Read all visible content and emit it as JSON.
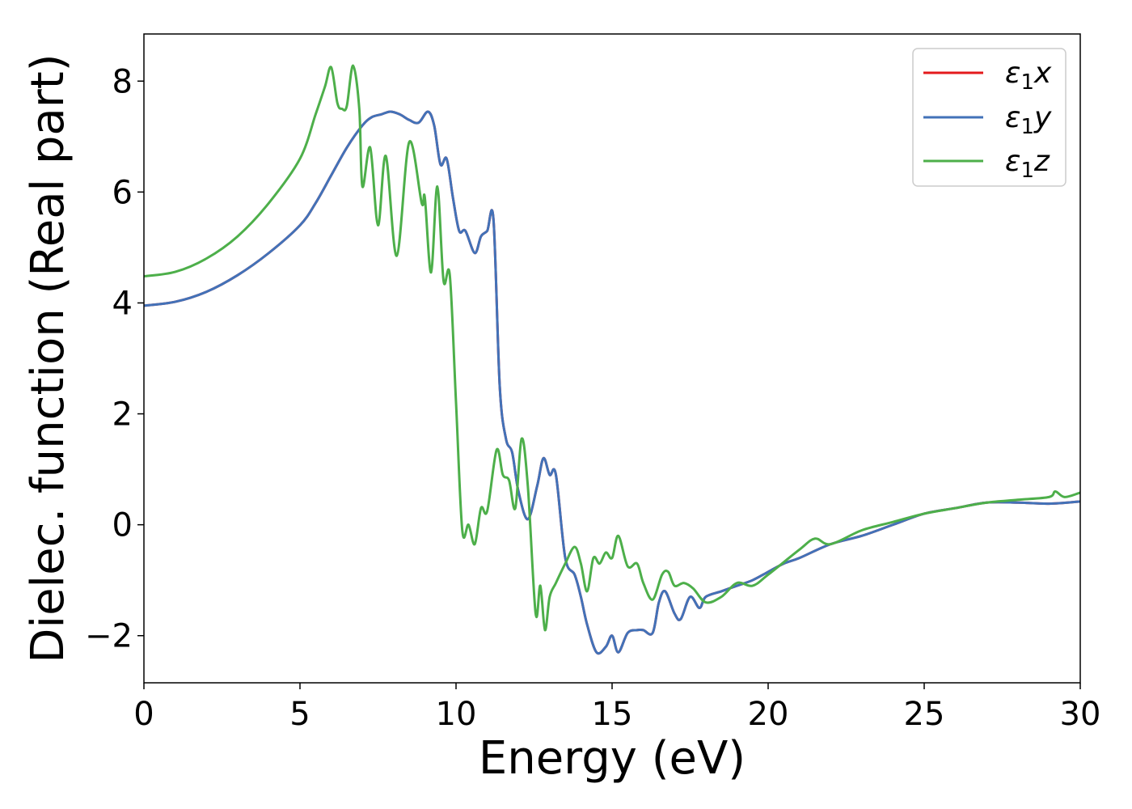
{
  "chart_data": {
    "type": "line",
    "xlabel": "Energy (eV)",
    "ylabel": "Dielec. function (Real part)",
    "xlim": [
      0,
      30
    ],
    "ylim": [
      -2.85,
      8.85
    ],
    "xticks": [
      0,
      5,
      10,
      15,
      20,
      25,
      30
    ],
    "xtick_labels": [
      "0",
      "5",
      "10",
      "15",
      "20",
      "25",
      "30"
    ],
    "yticks": [
      -2,
      0,
      2,
      4,
      6,
      8
    ],
    "ytick_labels": [
      "−2",
      "0",
      "2",
      "4",
      "6",
      "8"
    ],
    "grid": false,
    "legend_position": "top-right",
    "series": [
      {
        "name": "ε1x",
        "color": "#e41a1c",
        "x": [
          0,
          1,
          2,
          3,
          4,
          5,
          5.5,
          6,
          6.5,
          7,
          7.3,
          7.6,
          7.9,
          8.2,
          8.5,
          8.8,
          9.1,
          9.3,
          9.5,
          9.7,
          9.9,
          10.1,
          10.3,
          10.6,
          10.8,
          11.0,
          11.2,
          11.4,
          11.6,
          11.8,
          12.0,
          12.3,
          12.6,
          12.8,
          13.0,
          13.2,
          13.5,
          13.8,
          14.0,
          14.2,
          14.5,
          14.8,
          15.0,
          15.2,
          15.5,
          15.8,
          16.0,
          16.3,
          16.5,
          16.7,
          17.0,
          17.2,
          17.5,
          17.8,
          18.0,
          18.5,
          19.0,
          19.5,
          20,
          20.5,
          21,
          22,
          23,
          24,
          25,
          26,
          27,
          28,
          29,
          30
        ],
        "y": [
          3.95,
          4.02,
          4.2,
          4.5,
          4.9,
          5.4,
          5.8,
          6.3,
          6.8,
          7.2,
          7.35,
          7.4,
          7.45,
          7.4,
          7.3,
          7.25,
          7.45,
          7.2,
          6.5,
          6.6,
          5.9,
          5.3,
          5.3,
          4.9,
          5.2,
          5.3,
          5.5,
          2.5,
          1.55,
          1.3,
          0.6,
          0.1,
          0.7,
          1.2,
          0.9,
          0.9,
          -0.6,
          -0.9,
          -1.3,
          -1.8,
          -2.3,
          -2.2,
          -2.0,
          -2.3,
          -1.95,
          -1.9,
          -1.9,
          -1.95,
          -1.4,
          -1.2,
          -1.6,
          -1.7,
          -1.3,
          -1.5,
          -1.3,
          -1.2,
          -1.1,
          -1.0,
          -0.85,
          -0.7,
          -0.6,
          -0.35,
          -0.2,
          0.0,
          0.2,
          0.3,
          0.4,
          0.4,
          0.38,
          0.42
        ]
      },
      {
        "name": "ε1y",
        "color": "#4272b8",
        "x": [
          0,
          1,
          2,
          3,
          4,
          5,
          5.5,
          6,
          6.5,
          7,
          7.3,
          7.6,
          7.9,
          8.2,
          8.5,
          8.8,
          9.1,
          9.3,
          9.5,
          9.7,
          9.9,
          10.1,
          10.3,
          10.6,
          10.8,
          11.0,
          11.2,
          11.4,
          11.6,
          11.8,
          12.0,
          12.3,
          12.6,
          12.8,
          13.0,
          13.2,
          13.5,
          13.8,
          14.0,
          14.2,
          14.5,
          14.8,
          15.0,
          15.2,
          15.5,
          15.8,
          16.0,
          16.3,
          16.5,
          16.7,
          17.0,
          17.2,
          17.5,
          17.8,
          18.0,
          18.5,
          19.0,
          19.5,
          20,
          20.5,
          21,
          22,
          23,
          24,
          25,
          26,
          27,
          28,
          29,
          30
        ],
        "y": [
          3.95,
          4.02,
          4.2,
          4.5,
          4.9,
          5.4,
          5.8,
          6.3,
          6.8,
          7.2,
          7.35,
          7.4,
          7.45,
          7.4,
          7.3,
          7.25,
          7.45,
          7.2,
          6.5,
          6.6,
          5.9,
          5.3,
          5.3,
          4.9,
          5.2,
          5.3,
          5.5,
          2.5,
          1.55,
          1.3,
          0.6,
          0.1,
          0.7,
          1.2,
          0.9,
          0.9,
          -0.6,
          -0.9,
          -1.3,
          -1.8,
          -2.3,
          -2.2,
          -2.0,
          -2.3,
          -1.95,
          -1.9,
          -1.9,
          -1.95,
          -1.4,
          -1.2,
          -1.6,
          -1.7,
          -1.3,
          -1.5,
          -1.3,
          -1.2,
          -1.1,
          -1.0,
          -0.85,
          -0.7,
          -0.6,
          -0.35,
          -0.2,
          0.0,
          0.2,
          0.3,
          0.4,
          0.4,
          0.38,
          0.42
        ]
      },
      {
        "name": "ε1z",
        "color": "#4daf4a",
        "x": [
          0,
          1,
          2,
          3,
          4,
          5,
          5.5,
          5.8,
          6.0,
          6.2,
          6.35,
          6.5,
          6.7,
          6.9,
          7.0,
          7.25,
          7.5,
          7.75,
          8.1,
          8.5,
          8.9,
          9.0,
          9.2,
          9.4,
          9.6,
          9.8,
          10.0,
          10.2,
          10.4,
          10.6,
          10.8,
          11.0,
          11.3,
          11.5,
          11.7,
          11.9,
          12.1,
          12.3,
          12.55,
          12.7,
          12.85,
          13.0,
          13.2,
          13.5,
          13.8,
          14.0,
          14.2,
          14.4,
          14.6,
          14.8,
          15.0,
          15.2,
          15.5,
          15.8,
          16.0,
          16.3,
          16.6,
          16.8,
          17.0,
          17.3,
          17.6,
          18.0,
          18.5,
          19.0,
          19.5,
          20,
          21,
          21.5,
          22,
          23,
          24,
          25,
          26,
          27,
          28,
          29,
          29.2,
          29.5,
          30
        ],
        "y": [
          4.48,
          4.56,
          4.8,
          5.2,
          5.8,
          6.6,
          7.4,
          7.9,
          8.25,
          7.6,
          7.5,
          7.55,
          8.28,
          7.5,
          6.1,
          6.8,
          5.4,
          6.65,
          4.85,
          6.9,
          5.8,
          5.9,
          4.55,
          6.1,
          4.4,
          4.5,
          2.2,
          -0.1,
          0.0,
          -0.35,
          0.3,
          0.25,
          1.35,
          0.9,
          0.8,
          0.3,
          1.55,
          0.7,
          -1.6,
          -1.1,
          -1.9,
          -1.3,
          -1.05,
          -0.7,
          -0.4,
          -0.7,
          -1.2,
          -0.6,
          -0.7,
          -0.5,
          -0.6,
          -0.2,
          -0.75,
          -0.7,
          -1.05,
          -1.35,
          -0.9,
          -0.85,
          -1.1,
          -1.05,
          -1.15,
          -1.4,
          -1.3,
          -1.05,
          -1.1,
          -0.9,
          -0.45,
          -0.25,
          -0.35,
          -0.1,
          0.05,
          0.2,
          0.3,
          0.4,
          0.45,
          0.5,
          0.6,
          0.5,
          0.58
        ]
      }
    ],
    "legend": {
      "entries": [
        {
          "symbol": "ε",
          "sub": "1",
          "suffix": "x",
          "color": "#e41a1c"
        },
        {
          "symbol": "ε",
          "sub": "1",
          "suffix": "y",
          "color": "#4272b8"
        },
        {
          "symbol": "ε",
          "sub": "1",
          "suffix": "z",
          "color": "#4daf4a"
        }
      ]
    }
  }
}
